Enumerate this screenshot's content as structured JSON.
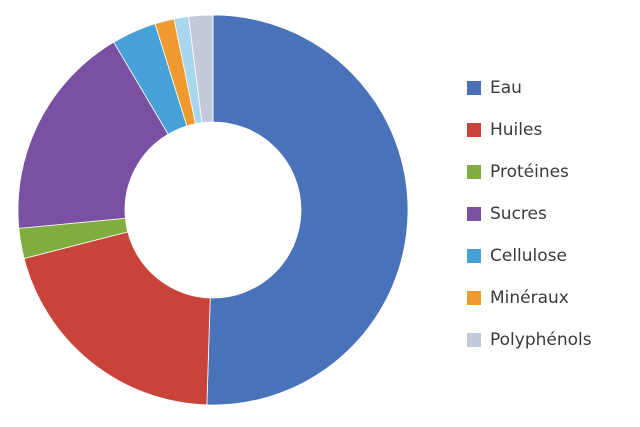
{
  "chart_data": {
    "type": "donut",
    "categories": [
      "Eau",
      "Huiles",
      "Protéines",
      "Sucres",
      "Cellulose",
      "Minéraux",
      null,
      "Polyphénols"
    ],
    "values": [
      50.5,
      20.5,
      2.5,
      18,
      3.7,
      1.6,
      1.2,
      2.0
    ],
    "colors": [
      "#4a72b8",
      "#c8443b",
      "#7fae3e",
      "#7a50a2",
      "#46a2d6",
      "#ef9a2e",
      "#a9d6ee",
      "#c3c9d8"
    ],
    "legend": "right"
  }
}
